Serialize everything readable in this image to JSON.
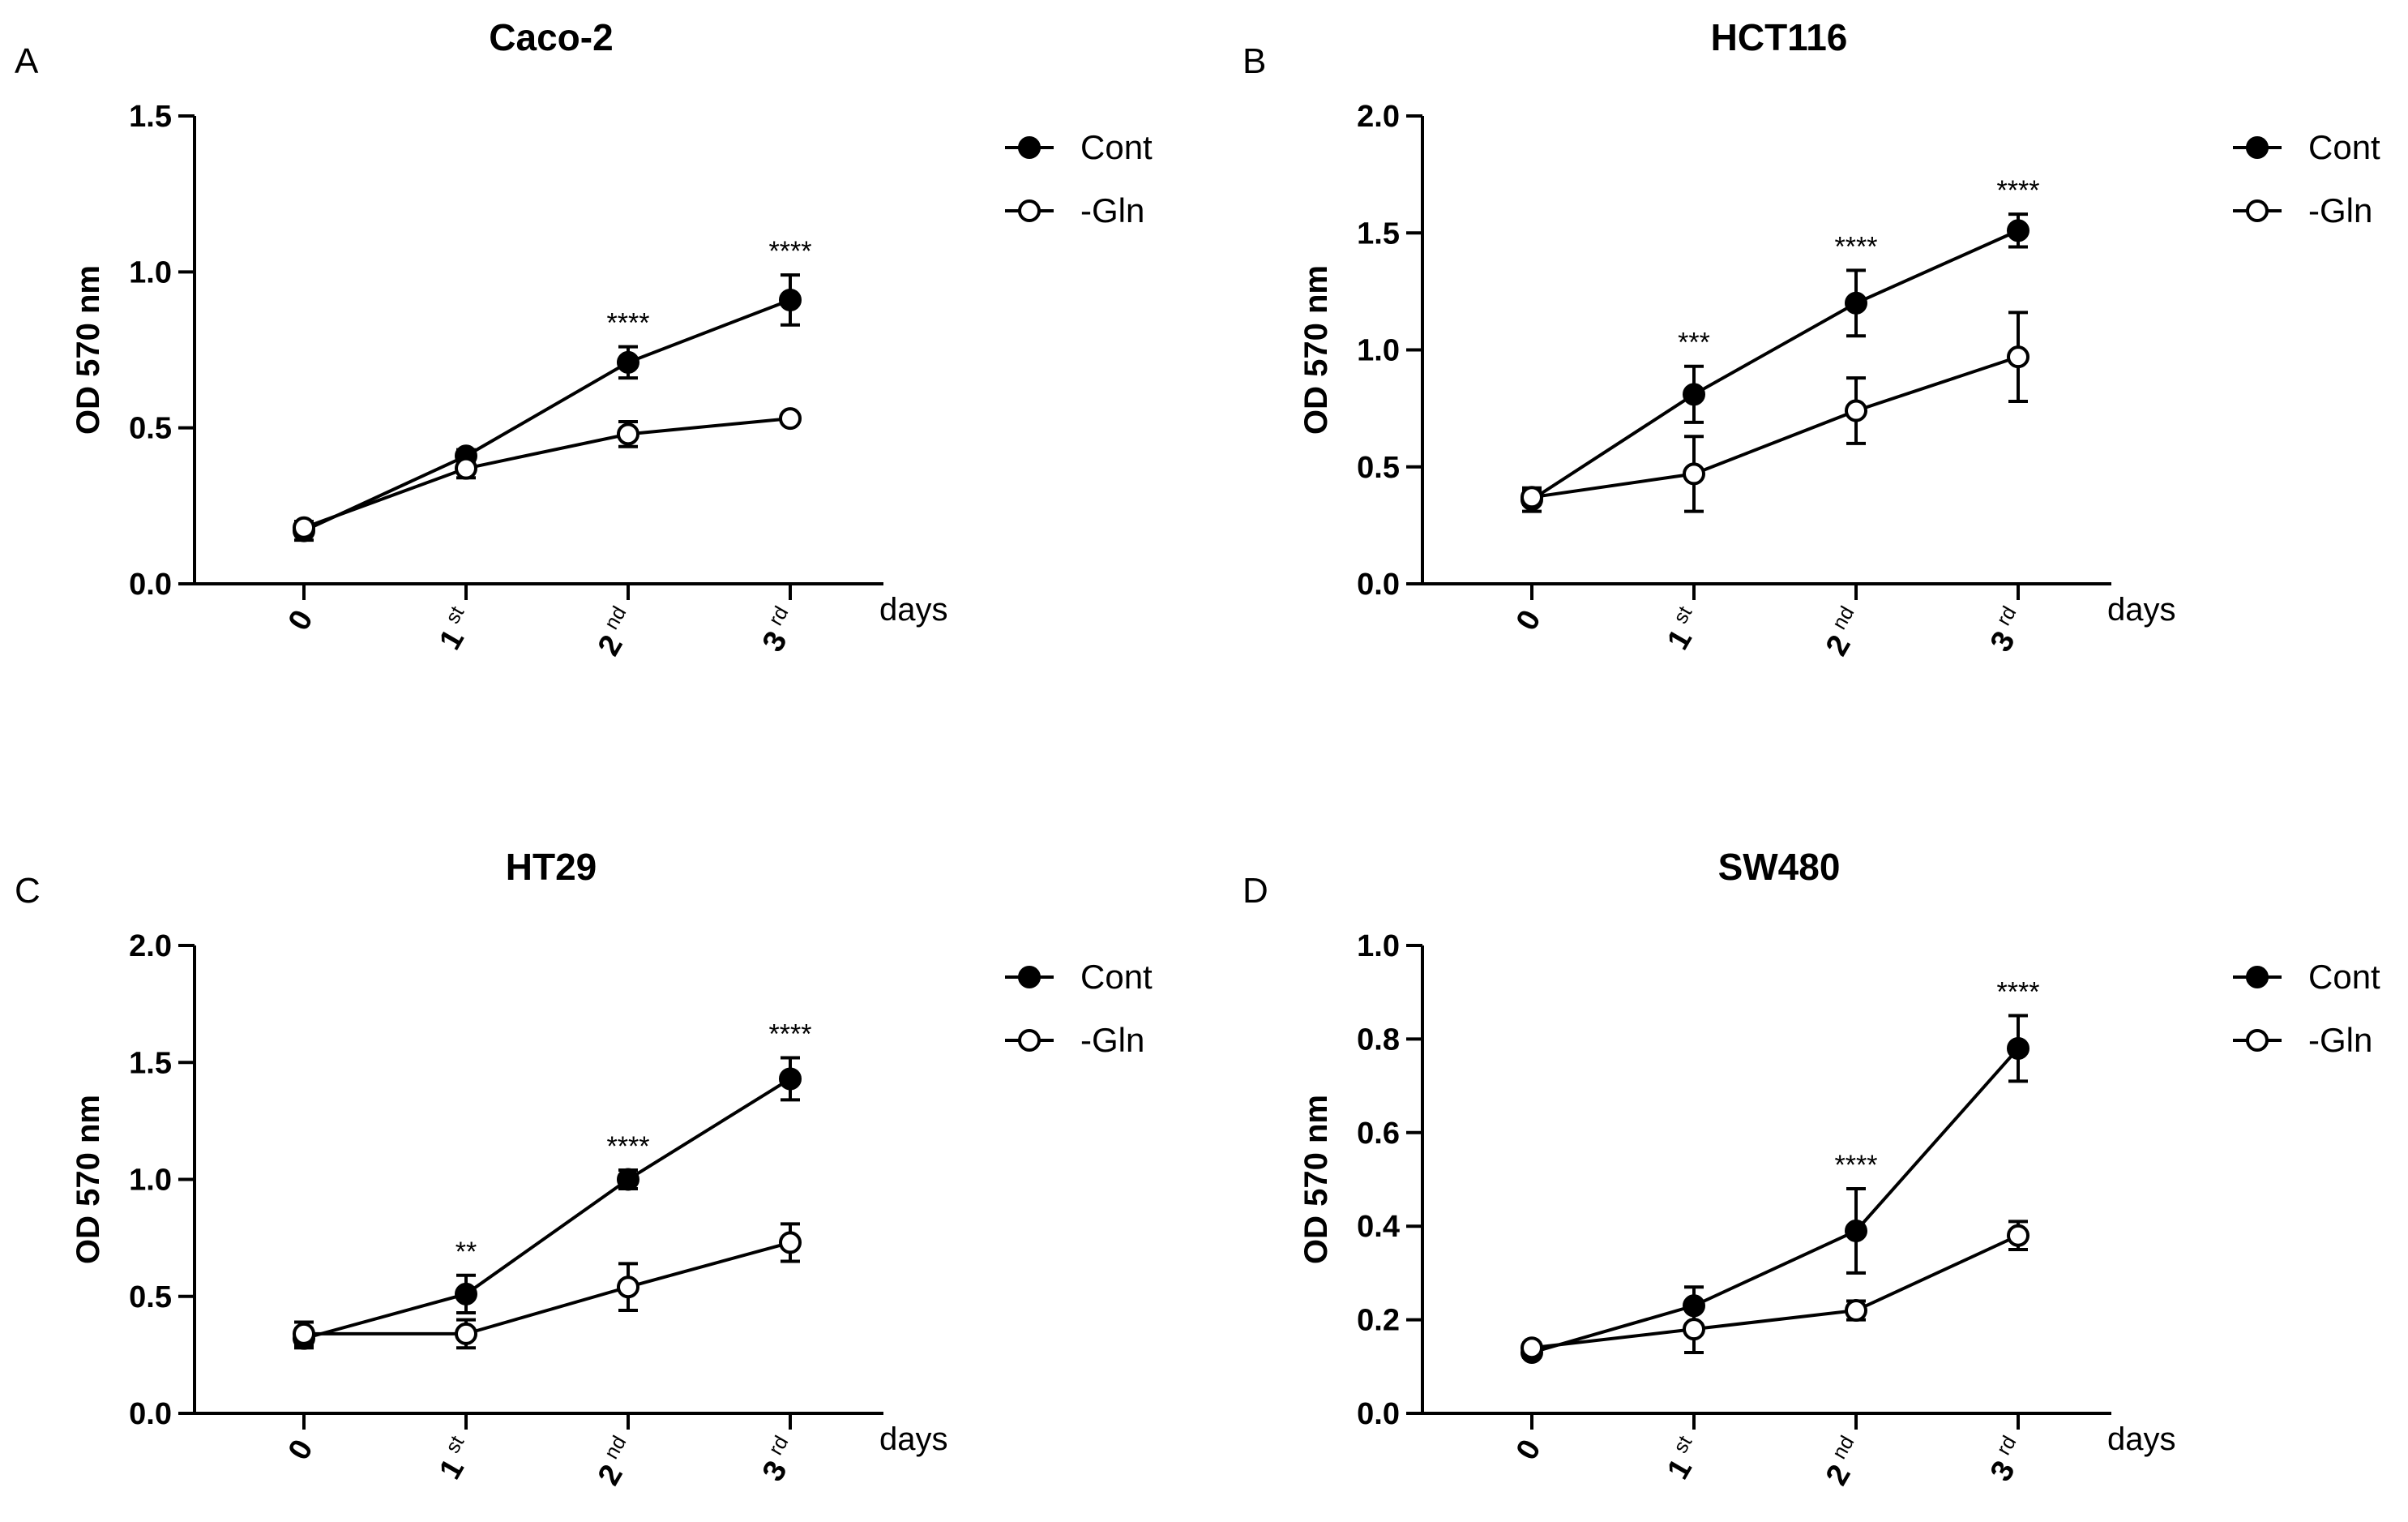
{
  "chart_data": [
    {
      "panel_label": "A",
      "type": "line",
      "title": "Caco-2",
      "ylabel": "OD 570 nm",
      "xlabel": "days",
      "ylim": [
        0,
        1.5
      ],
      "yticks": [
        "0.0",
        "0.5",
        "1.0",
        "1.5"
      ],
      "yticks_values": [
        0,
        0.5,
        1.0,
        1.5
      ],
      "categories": [
        {
          "num": "0",
          "sup": ""
        },
        {
          "num": "1",
          "sup": "st"
        },
        {
          "num": "2",
          "sup": "nd"
        },
        {
          "num": "3",
          "sup": "rd"
        }
      ],
      "series": [
        {
          "name": "Cont",
          "marker": "filled",
          "values": [
            0.17,
            0.41,
            0.71,
            0.91
          ],
          "errors": [
            0.03,
            0.02,
            0.05,
            0.08
          ]
        },
        {
          "name": "-Gln",
          "marker": "open",
          "values": [
            0.18,
            0.37,
            0.48,
            0.53
          ],
          "errors": [
            0.02,
            0.03,
            0.04,
            0.01
          ]
        }
      ],
      "annotations": [
        {
          "index": 2,
          "text": "****"
        },
        {
          "index": 3,
          "text": "****"
        }
      ]
    },
    {
      "panel_label": "B",
      "type": "line",
      "title": "HCT116",
      "ylabel": "OD 570 nm",
      "xlabel": "days",
      "ylim": [
        0,
        2.0
      ],
      "yticks": [
        "0.0",
        "0.5",
        "1.0",
        "1.5",
        "2.0"
      ],
      "yticks_values": [
        0,
        0.5,
        1.0,
        1.5,
        2.0
      ],
      "categories": [
        {
          "num": "0",
          "sup": ""
        },
        {
          "num": "1",
          "sup": "st"
        },
        {
          "num": "2",
          "sup": "nd"
        },
        {
          "num": "3",
          "sup": "rd"
        }
      ],
      "series": [
        {
          "name": "Cont",
          "marker": "filled",
          "values": [
            0.36,
            0.81,
            1.2,
            1.51
          ],
          "errors": [
            0.05,
            0.12,
            0.14,
            0.07
          ]
        },
        {
          "name": "-Gln",
          "marker": "open",
          "values": [
            0.37,
            0.47,
            0.74,
            0.97
          ],
          "errors": [
            0.03,
            0.16,
            0.14,
            0.19
          ]
        }
      ],
      "annotations": [
        {
          "index": 1,
          "text": "***"
        },
        {
          "index": 2,
          "text": "****"
        },
        {
          "index": 3,
          "text": "****"
        }
      ]
    },
    {
      "panel_label": "C",
      "type": "line",
      "title": "HT29",
      "ylabel": "OD 570 nm",
      "xlabel": "days",
      "ylim": [
        0,
        2.0
      ],
      "yticks": [
        "0.0",
        "0.5",
        "1.0",
        "1.5",
        "2.0"
      ],
      "yticks_values": [
        0,
        0.5,
        1.0,
        1.5,
        2.0
      ],
      "categories": [
        {
          "num": "0",
          "sup": ""
        },
        {
          "num": "1",
          "sup": "st"
        },
        {
          "num": "2",
          "sup": "nd"
        },
        {
          "num": "3",
          "sup": "rd"
        }
      ],
      "series": [
        {
          "name": "Cont",
          "marker": "filled",
          "values": [
            0.32,
            0.51,
            1.0,
            1.43
          ],
          "errors": [
            0.04,
            0.08,
            0.04,
            0.09
          ]
        },
        {
          "name": "-Gln",
          "marker": "open",
          "values": [
            0.34,
            0.34,
            0.54,
            0.73
          ],
          "errors": [
            0.05,
            0.06,
            0.1,
            0.08
          ]
        }
      ],
      "annotations": [
        {
          "index": 1,
          "text": "**"
        },
        {
          "index": 2,
          "text": "****"
        },
        {
          "index": 3,
          "text": "****"
        }
      ]
    },
    {
      "panel_label": "D",
      "type": "line",
      "title": "SW480",
      "ylabel": "OD 570 nm",
      "xlabel": "days",
      "ylim": [
        0,
        1.0
      ],
      "yticks": [
        "0.0",
        "0.2",
        "0.4",
        "0.6",
        "0.8",
        "1.0"
      ],
      "yticks_values": [
        0,
        0.2,
        0.4,
        0.6,
        0.8,
        1.0
      ],
      "categories": [
        {
          "num": "0",
          "sup": ""
        },
        {
          "num": "1",
          "sup": "st"
        },
        {
          "num": "2",
          "sup": "nd"
        },
        {
          "num": "3",
          "sup": "rd"
        }
      ],
      "series": [
        {
          "name": "Cont",
          "marker": "filled",
          "values": [
            0.13,
            0.23,
            0.39,
            0.78
          ],
          "errors": [
            0.01,
            0.04,
            0.09,
            0.07
          ]
        },
        {
          "name": "-Gln",
          "marker": "open",
          "values": [
            0.14,
            0.18,
            0.22,
            0.38
          ],
          "errors": [
            0.01,
            0.05,
            0.02,
            0.03
          ]
        }
      ],
      "annotations": [
        {
          "index": 2,
          "text": "****"
        },
        {
          "index": 3,
          "text": "****"
        }
      ]
    }
  ]
}
